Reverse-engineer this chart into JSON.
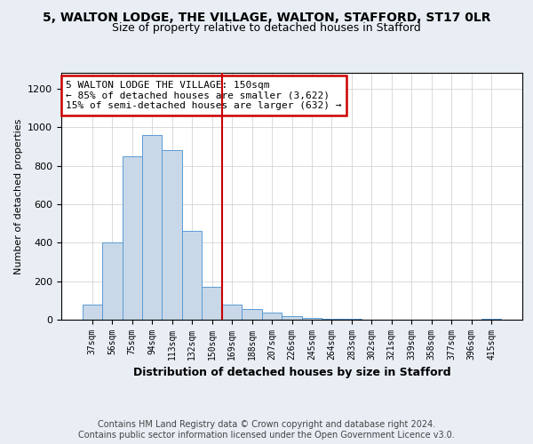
{
  "title_line1": "5, WALTON LODGE, THE VILLAGE, WALTON, STAFFORD, ST17 0LR",
  "title_line2": "Size of property relative to detached houses in Stafford",
  "xlabel": "Distribution of detached houses by size in Stafford",
  "ylabel": "Number of detached properties",
  "categories": [
    "37sqm",
    "56sqm",
    "75sqm",
    "94sqm",
    "113sqm",
    "132sqm",
    "150sqm",
    "169sqm",
    "188sqm",
    "207sqm",
    "226sqm",
    "245sqm",
    "264sqm",
    "283sqm",
    "302sqm",
    "321sqm",
    "339sqm",
    "358sqm",
    "377sqm",
    "396sqm",
    "415sqm"
  ],
  "values": [
    80,
    400,
    850,
    960,
    880,
    460,
    170,
    80,
    55,
    35,
    20,
    10,
    5,
    3,
    2,
    1,
    0,
    0,
    1,
    0,
    5
  ],
  "bar_color": "#c8d8e8",
  "bar_edge_color": "#5b9bd5",
  "highlight_index": 6,
  "highlight_line_color": "#cc0000",
  "annotation_text": "5 WALTON LODGE THE VILLAGE: 150sqm\n← 85% of detached houses are smaller (3,622)\n15% of semi-detached houses are larger (632) →",
  "annotation_box_color": "white",
  "annotation_box_edge": "#cc0000",
  "ylim": [
    0,
    1280
  ],
  "yticks": [
    0,
    200,
    400,
    600,
    800,
    1000,
    1200
  ],
  "footnote": "Contains HM Land Registry data © Crown copyright and database right 2024.\nContains public sector information licensed under the Open Government Licence v3.0.",
  "background_color": "#e8eef4",
  "plot_background": "white",
  "title_fontsize": 10,
  "subtitle_fontsize": 9,
  "footnote_fontsize": 7
}
